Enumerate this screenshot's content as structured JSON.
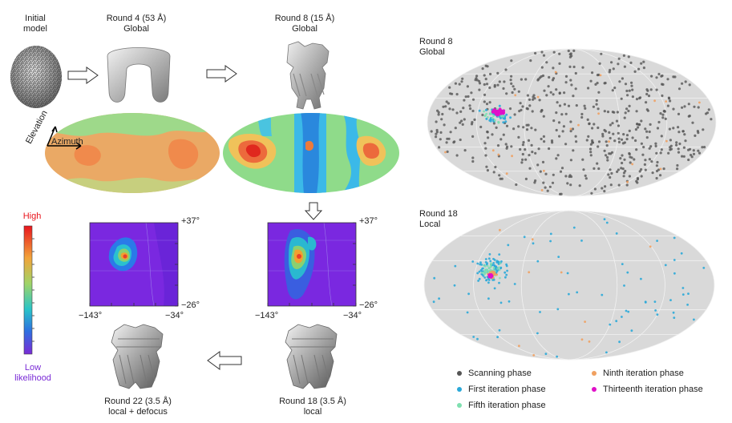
{
  "pipeline": {
    "initial_label": "Initial\nmodel",
    "round4_label": "Round 4 (53 Å)\nGlobal",
    "round8_label": "Round 8 (15 Å)\nGlobal",
    "axis_elevation": "Elevation",
    "axis_azimuth": "Azimuth",
    "round18_label": "Round 18 (3.5 Å)\nlocal",
    "round22_label": "Round 22 (3.5 Å)\nlocal + defocus"
  },
  "colorbar": {
    "high": "High",
    "low": "Low\nlikelihood",
    "high_color": "#e8151d",
    "low_color": "#7a2bd6"
  },
  "zoom_maps": {
    "left": {
      "top_tick": "+37°",
      "bottom_tick": "−26°",
      "left_tick": "−143°",
      "right_tick": "−34°"
    },
    "right": {
      "top_tick": "+37°",
      "bottom_tick": "−26°",
      "left_tick": "−143°",
      "right_tick": "−34°"
    }
  },
  "projections": {
    "top_title": "Round 8\nGlobal",
    "bottom_title": "Round 18\nLocal"
  },
  "legend": [
    {
      "label": "Scanning phase",
      "color": "#555555"
    },
    {
      "label": "Ninth iteration phase",
      "color": "#f0a060"
    },
    {
      "label": "First iteration phase",
      "color": "#2aa8d8"
    },
    {
      "label": "Thirteenth iteration phase",
      "color": "#e010c8"
    },
    {
      "label": "Fifth iteration phase",
      "color": "#7fe0b0"
    }
  ]
}
